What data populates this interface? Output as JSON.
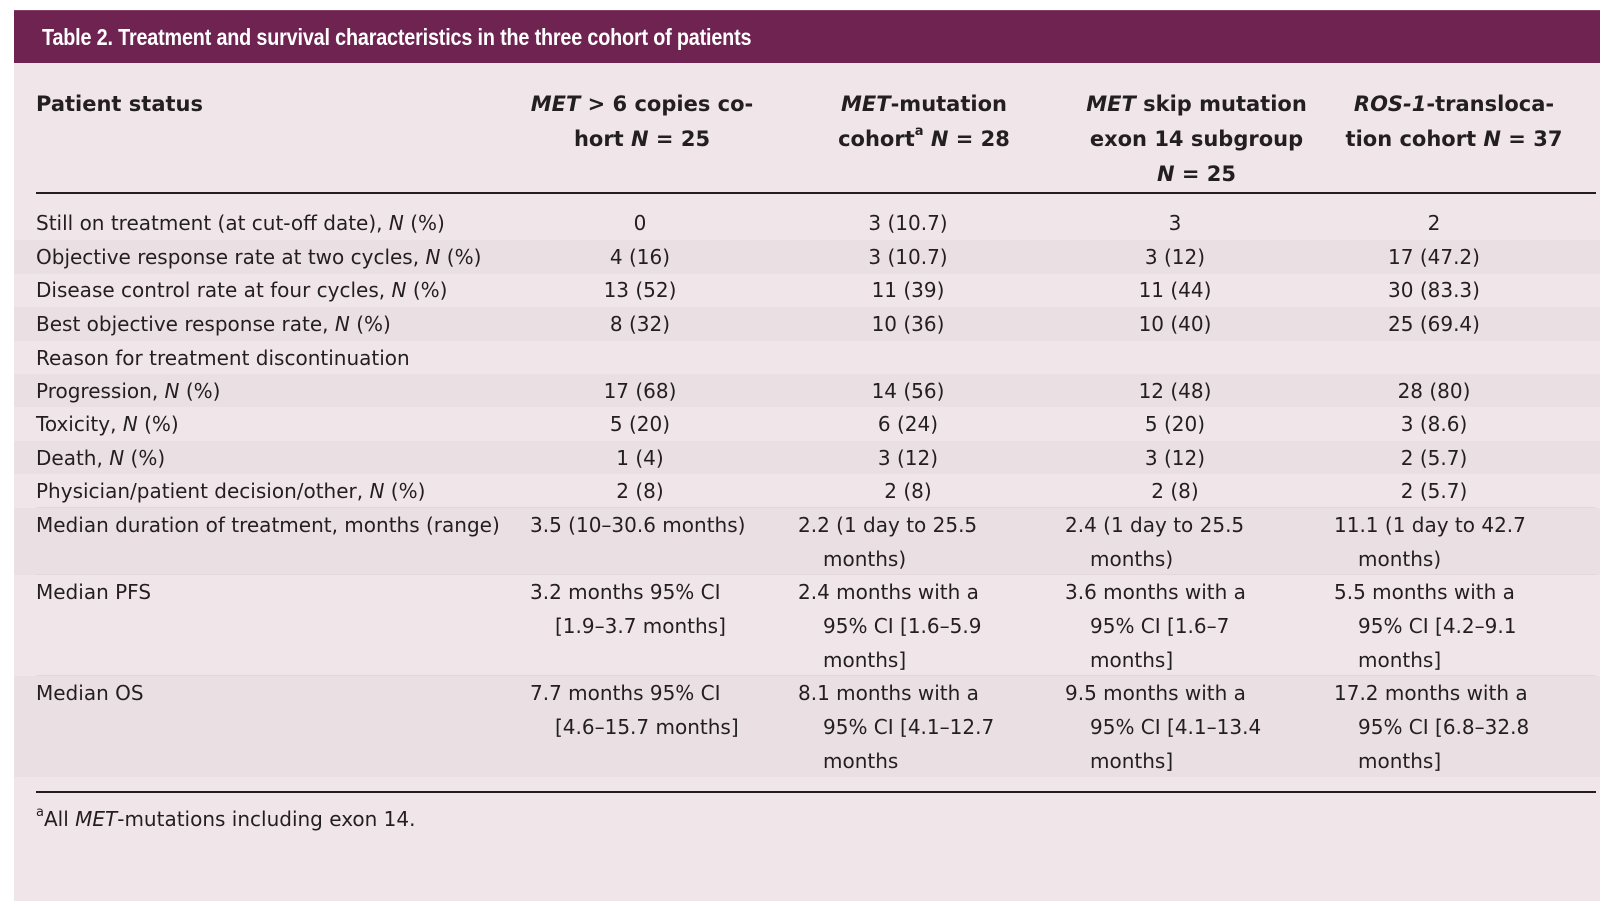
{
  "table": {
    "title": "Table 2. Treatment and survival characteristics in the three cohort of patients",
    "headers": {
      "col0": "Patient status",
      "col1": {
        "pre_italic": "MET",
        "text1": " > 6 copies co-",
        "line2_pre": "hort ",
        "italic_n": "N",
        "line2_post": " = 25"
      },
      "col2": {
        "pre_italic": "MET",
        "text1": "-mutation",
        "line2_pre": "cohort",
        "sup": "a",
        "italic_n": "N",
        "line2_post": " = 28"
      },
      "col3": {
        "pre_italic": "MET",
        "text1": " skip mutation",
        "line2": "exon 14 subgroup",
        "italic_n": "N",
        "line3_post": " = 25"
      },
      "col4": {
        "pre_italic": "ROS-1",
        "text1": "-transloca-",
        "line2_pre": "tion cohort ",
        "italic_n": "N",
        "line2_post": " = 37"
      }
    },
    "rows": [
      {
        "label": "Still on treatment (at cut-off date), ",
        "label_italic": "N",
        "label_suffix": " (%)",
        "values": [
          "0",
          "3 (10.7)",
          "3",
          "2"
        ]
      },
      {
        "label": "Objective response rate at two cycles, ",
        "label_italic": "N",
        "label_suffix": " (%)",
        "values": [
          "4 (16)",
          "3 (10.7)",
          "3 (12)",
          "17 (47.2)"
        ]
      },
      {
        "label": "Disease control rate at four cycles, ",
        "label_italic": "N",
        "label_suffix": " (%)",
        "values": [
          "13 (52)",
          "11 (39)",
          "11 (44)",
          "30 (83.3)"
        ]
      },
      {
        "label": "Best objective response rate, ",
        "label_italic": "N",
        "label_suffix": " (%)",
        "values": [
          "8 (32)",
          "10 (36)",
          "10 (40)",
          "25 (69.4)"
        ]
      },
      {
        "label": "Reason for treatment discontinuation",
        "label_italic": "",
        "label_suffix": "",
        "values": [
          "",
          "",
          "",
          ""
        ]
      },
      {
        "label": "Progression, ",
        "label_italic": "N",
        "label_suffix": " (%)",
        "values": [
          "17 (68)",
          "14 (56)",
          "12 (48)",
          "28 (80)"
        ]
      },
      {
        "label": "Toxicity, ",
        "label_italic": "N",
        "label_suffix": " (%)",
        "values": [
          "5 (20)",
          "6 (24)",
          "5 (20)",
          "3 (8.6)"
        ]
      },
      {
        "label": "Death, ",
        "label_italic": "N",
        "label_suffix": " (%)",
        "values": [
          "1 (4)",
          "3 (12)",
          "3 (12)",
          "2 (5.7)"
        ]
      },
      {
        "label": "Physician/patient decision/other, ",
        "label_italic": "N",
        "label_suffix": " (%)",
        "values": [
          "2 (8)",
          "2 (8)",
          "2 (8)",
          "2 (5.7)"
        ]
      },
      {
        "label": "Median duration of treatment, months (range)",
        "label_italic": "",
        "label_suffix": "",
        "values": [
          [
            "3.5 (10–30.6 months)"
          ],
          [
            "2.2 (1 day to 25.5",
            "months)"
          ],
          [
            "2.4 (1 day to 25.5",
            "months)"
          ],
          [
            "11.1 (1 day to 42.7",
            "months)"
          ]
        ]
      },
      {
        "label": "Median PFS",
        "label_italic": "",
        "label_suffix": "",
        "values": [
          [
            "3.2 months 95% CI",
            "[1.9–3.7 months]"
          ],
          [
            "2.4 months with a",
            "95% CI [1.6–5.9",
            "months]"
          ],
          [
            "3.6 months with a",
            "95% CI [1.6–7",
            "months]"
          ],
          [
            "5.5 months with a",
            "95% CI [4.2–9.1",
            "months]"
          ]
        ]
      },
      {
        "label": "Median OS",
        "label_italic": "",
        "label_suffix": "",
        "values": [
          [
            "7.7 months 95% CI",
            "[4.6–15.7 months]"
          ],
          [
            "8.1 months with a",
            "95% CI [4.1–12.7",
            "months"
          ],
          [
            "9.5 months with a",
            "95% CI [4.1–13.4",
            "months]"
          ],
          [
            "17.2 months with a",
            "95% CI [6.8–32.8",
            "months]"
          ]
        ]
      }
    ],
    "footnote": {
      "sup": "a",
      "pre": "All ",
      "italic": "MET",
      "post": "-mutations including exon 14."
    }
  }
}
